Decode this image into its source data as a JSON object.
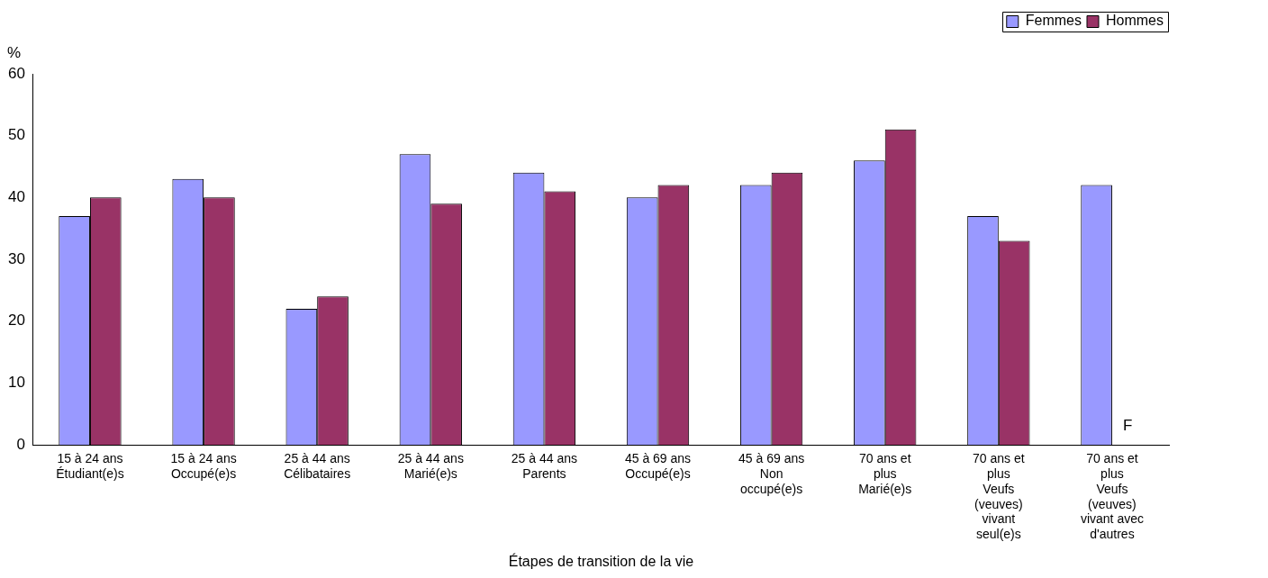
{
  "chart_data": {
    "type": "bar",
    "xlabel": "Étapes de transition de la vie",
    "ylabel": "%",
    "categories": [
      "15 à 24 ans\nÉtudiant(e)s",
      "15 à 24 ans\nOccupé(e)s",
      "25 à 44 ans\nCélibataires",
      "25 à 44 ans\nMarié(e)s",
      "25 à 44 ans\nParents",
      "45 à 69 ans\nOccupé(e)s",
      "45 à 69 ans\nNon\noccupé(e)s",
      "70 ans et\nplus\nMarié(e)s",
      "70 ans et\nplus\nVeufs\n(veuves)\nvivant\nseul(e)s",
      "70 ans et\nplus\nVeufs\n(veuves)\nvivant avec\nd'autres"
    ],
    "series": [
      {
        "name": "Femmes",
        "color": "#9999ff",
        "values": [
          37,
          43,
          22,
          47,
          44,
          40,
          42,
          46,
          37,
          42
        ]
      },
      {
        "name": "Hommes",
        "color": "#993366",
        "values": [
          40,
          40,
          24,
          39,
          41,
          42,
          44,
          51,
          33,
          null
        ]
      }
    ],
    "annotations": [
      {
        "text": "F",
        "x": "70 ans et\nplus\nVeufs\n(veuves)\nvivant avec\nd'autres",
        "y": 3
      }
    ],
    "ylim": [
      0,
      60
    ],
    "yticks": [
      0,
      10,
      20,
      30,
      40,
      50,
      60
    ],
    "grid": false,
    "legend": "top right"
  }
}
